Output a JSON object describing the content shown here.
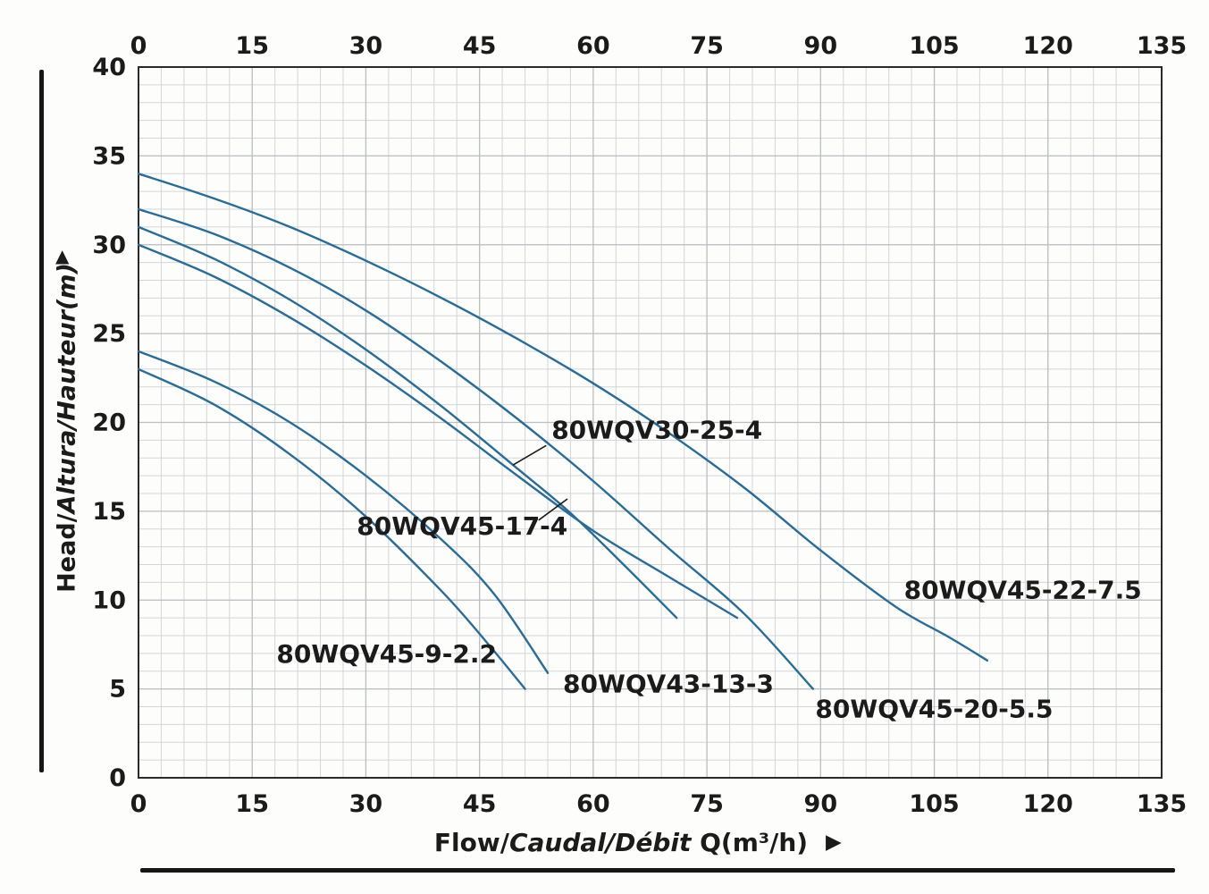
{
  "chart_data": {
    "type": "line",
    "xlabel": "Flow/Caudal/Débit Q(m³/h)",
    "ylabel": "Head/Altura/Hauteur(m)",
    "xlim": [
      0,
      135
    ],
    "ylim": [
      0,
      40
    ],
    "x_ticks": [
      0,
      15,
      30,
      45,
      60,
      75,
      90,
      105,
      120,
      135
    ],
    "y_ticks": [
      0,
      5,
      10,
      15,
      20,
      25,
      30,
      35,
      40
    ],
    "x_tick_labels_shown": "top and bottom",
    "x_minor_step": 3,
    "y_minor_step": 1,
    "grid": true,
    "legend_position": "inline curve labels",
    "series": [
      {
        "name": "80WQV45-22-7.5",
        "points": [
          [
            0,
            34
          ],
          [
            10,
            32.6
          ],
          [
            20,
            31
          ],
          [
            30,
            29.1
          ],
          [
            40,
            27
          ],
          [
            50,
            24.7
          ],
          [
            60,
            22.2
          ],
          [
            70,
            19.4
          ],
          [
            80,
            16.3
          ],
          [
            90,
            12.8
          ],
          [
            100,
            9.6
          ],
          [
            107,
            7.9
          ],
          [
            112,
            6.6
          ]
        ]
      },
      {
        "name": "80WQV45-20-5.5",
        "points": [
          [
            0,
            32
          ],
          [
            10,
            30.6
          ],
          [
            20,
            28.7
          ],
          [
            30,
            26.3
          ],
          [
            40,
            23.4
          ],
          [
            50,
            20.2
          ],
          [
            60,
            16.7
          ],
          [
            70,
            12.9
          ],
          [
            80,
            9.2
          ],
          [
            89,
            5
          ]
        ]
      },
      {
        "name": "80WQV30-25-4",
        "points": [
          [
            0,
            31
          ],
          [
            10,
            29.2
          ],
          [
            20,
            26.9
          ],
          [
            30,
            24.1
          ],
          [
            40,
            20.9
          ],
          [
            50,
            17.4
          ],
          [
            57,
            14.9
          ],
          [
            64,
            12
          ],
          [
            71,
            9
          ]
        ]
      },
      {
        "name": "80WQV45-17-4",
        "points": [
          [
            0,
            30
          ],
          [
            10,
            28.2
          ],
          [
            20,
            25.9
          ],
          [
            30,
            23.2
          ],
          [
            40,
            20.2
          ],
          [
            50,
            17
          ],
          [
            60,
            13.9
          ],
          [
            70,
            11.3
          ],
          [
            79,
            9
          ]
        ]
      },
      {
        "name": "80WQV43-13-3",
        "points": [
          [
            0,
            24
          ],
          [
            10,
            22.3
          ],
          [
            20,
            20
          ],
          [
            30,
            17
          ],
          [
            40,
            13.4
          ],
          [
            47,
            10.3
          ],
          [
            54,
            5.9
          ]
        ]
      },
      {
        "name": "80WQV45-9-2.2",
        "points": [
          [
            0,
            23
          ],
          [
            10,
            21
          ],
          [
            20,
            18.2
          ],
          [
            30,
            14.7
          ],
          [
            40,
            10.5
          ],
          [
            46,
            7.6
          ],
          [
            51,
            5
          ]
        ]
      }
    ],
    "annotations": [
      {
        "text": "80WQV30-25-4",
        "x": 54.5,
        "y": 19.6,
        "leader": [
          [
            53.8,
            18.7
          ],
          [
            49.4,
            17.6
          ]
        ]
      },
      {
        "text": "80WQV45-17-4",
        "x": 28.8,
        "y": 14.2,
        "leader": [
          [
            52.8,
            14.5
          ],
          [
            56.6,
            15.7
          ]
        ]
      },
      {
        "text": "80WQV45-22-7.5",
        "x": 101.0,
        "y": 10.6
      },
      {
        "text": "80WQV45-9-2.2",
        "x": 18.2,
        "y": 7.0
      },
      {
        "text": "80WQV43-13-3",
        "x": 56.0,
        "y": 5.3
      },
      {
        "text": "80WQV45-20-5.5",
        "x": 89.3,
        "y": 3.9
      }
    ]
  },
  "axes": {
    "y_title_plain": "Head/",
    "y_title_italic": "Altura/Hauteur(m)",
    "x_title_plain": "Flow/",
    "x_title_italic": "Caudal/Débit",
    "x_title_unit": " Q(m³/h)",
    "up_arrow": "▲",
    "right_arrow": "▶"
  },
  "colors": {
    "curve": "#2b6c94",
    "text": "#1b1b1b",
    "grid_minor": "#d3d5d7",
    "grid_major": "#bcbfc2",
    "frame": "#2a2a2a"
  }
}
